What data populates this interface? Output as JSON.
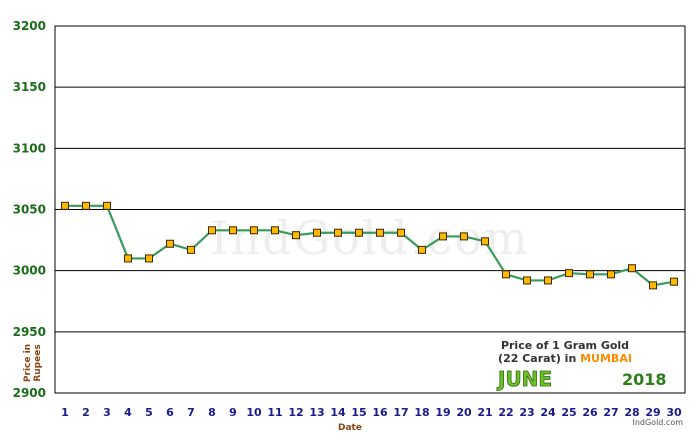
{
  "chart_data": {
    "type": "line",
    "xlabel": "Date",
    "ylabel": "Price in Rupees",
    "ylim": [
      2900,
      3200
    ],
    "yticks": [
      2900,
      2950,
      3000,
      3050,
      3100,
      3150,
      3200
    ],
    "x": [
      1,
      2,
      3,
      4,
      5,
      6,
      7,
      8,
      9,
      10,
      11,
      12,
      13,
      14,
      15,
      16,
      17,
      18,
      19,
      20,
      21,
      22,
      23,
      24,
      25,
      26,
      27,
      28,
      29,
      30
    ],
    "values": [
      3053,
      3053,
      3053,
      3010,
      3010,
      3022,
      3017,
      3033,
      3033,
      3033,
      3033,
      3029,
      3031,
      3031,
      3031,
      3031,
      3031,
      3017,
      3028,
      3028,
      3024,
      2997,
      2992,
      2992,
      2998,
      2997,
      2997,
      3002,
      2988,
      2991
    ],
    "grid": true,
    "line_color": "#3a9a5a",
    "marker_color": "#ffb800"
  },
  "caption": {
    "line1": "Price of 1 Gram Gold",
    "line2_prefix": "(22 Carat) in ",
    "city": "MUMBAI",
    "month": "JUNE",
    "year": "2018"
  },
  "watermark": "IndGold.com",
  "site": "IndGold.com"
}
